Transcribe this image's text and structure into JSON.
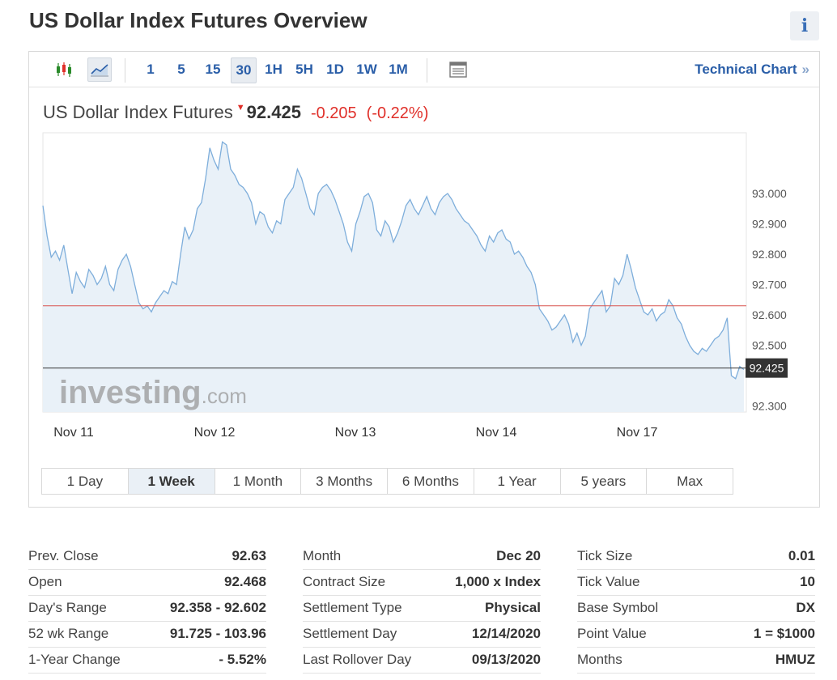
{
  "page": {
    "title": "US Dollar Index Futures Overview",
    "info_label": "i"
  },
  "toolbar": {
    "icons": [
      "candlestick-icon",
      "area-chart-icon",
      "table-icon"
    ],
    "timeframes": [
      "1",
      "5",
      "15",
      "30",
      "1H",
      "5H",
      "1D",
      "1W",
      "1M"
    ],
    "active_timeframe": "30",
    "technical_chart_label": "Technical Chart",
    "technical_chart_chevron": "»"
  },
  "quote": {
    "name": "US Dollar Index Futures",
    "direction_icon": "down-arrow-icon",
    "direction_glyph": "▼",
    "price": "92.425",
    "change": "-0.205",
    "change_pct": "(-0.22%)"
  },
  "watermark": {
    "main": "investing",
    "suffix": ".com"
  },
  "colors": {
    "line": "#7eaedb",
    "area": "#e9f1f8",
    "prev_close_line": "#d9534f",
    "current_line": "#333333",
    "up": "#2a8a2a",
    "down": "#e0302a",
    "link": "#2a5ea8"
  },
  "chart_data": {
    "type": "area",
    "x_labels": [
      "Nov 11",
      "Nov 12",
      "Nov 13",
      "Nov 14",
      "Nov 17"
    ],
    "y_ticks": [
      "93.000",
      "92.900",
      "92.800",
      "92.700",
      "92.600",
      "92.500",
      "92.300"
    ],
    "ylim": [
      92.28,
      93.2
    ],
    "reference_lines": [
      {
        "kind": "prev_close",
        "value": 92.63
      },
      {
        "kind": "current",
        "value": 92.425,
        "label": "92.425"
      }
    ],
    "values": [
      92.96,
      92.86,
      92.79,
      92.81,
      92.78,
      92.83,
      92.75,
      92.67,
      92.74,
      92.71,
      92.69,
      92.75,
      92.73,
      92.7,
      92.72,
      92.76,
      92.7,
      92.68,
      92.75,
      92.78,
      92.8,
      92.76,
      92.7,
      92.64,
      92.62,
      92.63,
      92.61,
      92.64,
      92.66,
      92.68,
      92.67,
      92.71,
      92.7,
      92.8,
      92.89,
      92.85,
      92.88,
      92.95,
      92.97,
      93.05,
      93.15,
      93.11,
      93.08,
      93.17,
      93.16,
      93.08,
      93.06,
      93.03,
      93.02,
      93.0,
      92.97,
      92.9,
      92.94,
      92.93,
      92.89,
      92.87,
      92.91,
      92.9,
      92.98,
      93.0,
      93.02,
      93.08,
      93.05,
      93.0,
      92.95,
      92.93,
      93.0,
      93.02,
      93.03,
      93.01,
      92.98,
      92.94,
      92.9,
      92.84,
      92.81,
      92.9,
      92.94,
      92.99,
      93.0,
      92.97,
      92.88,
      92.86,
      92.91,
      92.89,
      92.84,
      92.87,
      92.91,
      92.96,
      92.98,
      92.95,
      92.93,
      92.96,
      92.99,
      92.95,
      92.93,
      92.97,
      92.99,
      93.0,
      92.98,
      92.95,
      92.93,
      92.91,
      92.9,
      92.88,
      92.86,
      92.83,
      92.81,
      92.86,
      92.84,
      92.87,
      92.88,
      92.85,
      92.84,
      92.8,
      92.81,
      92.79,
      92.76,
      92.74,
      92.7,
      92.62,
      92.6,
      92.58,
      92.55,
      92.56,
      92.58,
      92.6,
      92.57,
      92.51,
      92.54,
      92.5,
      92.53,
      92.62,
      92.64,
      92.66,
      92.68,
      92.61,
      92.63,
      92.72,
      92.7,
      92.73,
      92.8,
      92.75,
      92.69,
      92.65,
      92.61,
      92.6,
      92.62,
      92.58,
      92.6,
      92.61,
      92.65,
      92.63,
      92.59,
      92.57,
      92.53,
      92.5,
      92.48,
      92.47,
      92.49,
      92.48,
      92.5,
      92.52,
      92.53,
      92.55,
      92.59,
      92.4,
      92.39,
      92.43,
      92.42
    ]
  },
  "range_buttons": [
    "1 Day",
    "1 Week",
    "1 Month",
    "3 Months",
    "6 Months",
    "1 Year",
    "5 years",
    "Max"
  ],
  "active_range": "1 Week",
  "stats": {
    "col1": [
      {
        "label": "Prev. Close",
        "value": "92.63"
      },
      {
        "label": "Open",
        "value": "92.468"
      },
      {
        "label": "Day's Range",
        "value": "92.358 - 92.602"
      },
      {
        "label": "52 wk Range",
        "value": "91.725 - 103.96"
      },
      {
        "label": "1-Year Change",
        "value": "- 5.52%"
      }
    ],
    "col2": [
      {
        "label": "Month",
        "value": "Dec 20"
      },
      {
        "label": "Contract Size",
        "value": "1,000 x Index"
      },
      {
        "label": "Settlement Type",
        "value": "Physical"
      },
      {
        "label": "Settlement Day",
        "value": "12/14/2020"
      },
      {
        "label": "Last Rollover Day",
        "value": "09/13/2020"
      }
    ],
    "col3": [
      {
        "label": "Tick Size",
        "value": "0.01"
      },
      {
        "label": "Tick Value",
        "value": "10"
      },
      {
        "label": "Base Symbol",
        "value": "DX"
      },
      {
        "label": "Point Value",
        "value": "1 = $1000"
      },
      {
        "label": "Months",
        "value": "HMUZ"
      }
    ]
  }
}
